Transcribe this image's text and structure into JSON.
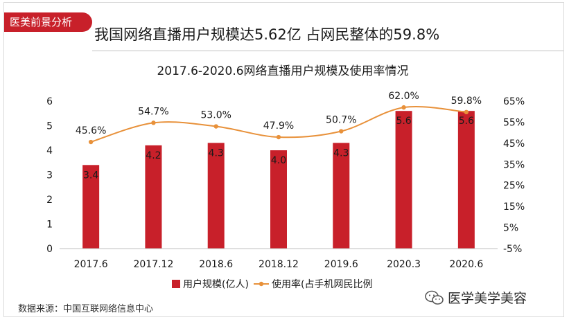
{
  "header": {
    "tag": "医美前景分析",
    "headline": "我国网络直播用户规模达5.62亿 占网民整体的59.8%"
  },
  "chart_data": {
    "type": "bar",
    "title": "2017.6-2020.6网络直播用户规模及使用率情况",
    "categories": [
      "2017.6",
      "2017.12",
      "2018.6",
      "2018.12",
      "2019.6",
      "2020.3",
      "2020.6"
    ],
    "series": [
      {
        "name": "用户规模(亿人)",
        "type": "bar",
        "axis": "left",
        "values": [
          3.4,
          4.2,
          4.3,
          4.0,
          4.3,
          5.6,
          5.6
        ],
        "labels": [
          "3.4",
          "4.2",
          "4.3",
          "4.0",
          "4.3",
          "5.6",
          "5.6"
        ],
        "color": "#c8202a"
      },
      {
        "name": "使用率(占手机网民比例",
        "type": "line",
        "axis": "right",
        "values": [
          45.6,
          54.7,
          53.0,
          47.9,
          50.7,
          62.0,
          59.8
        ],
        "labels": [
          "45.6%",
          "54.7%",
          "53.0%",
          "47.9%",
          "50.7%",
          "62.0%",
          "59.8%"
        ],
        "color": "#e8913a"
      }
    ],
    "ylim_left": [
      0,
      6
    ],
    "yticks_left": [
      "0",
      "1",
      "2",
      "3",
      "4",
      "5",
      "6"
    ],
    "ylim_right": [
      -5,
      65
    ],
    "yticks_right": [
      "-5%",
      "5%",
      "15%",
      "25%",
      "35%",
      "45%",
      "55%",
      "65%"
    ],
    "grid": false,
    "legend": "bottom"
  },
  "footer": {
    "source": "数据来源：中国互联网络信息中心",
    "watermark": "医学美学美容"
  }
}
